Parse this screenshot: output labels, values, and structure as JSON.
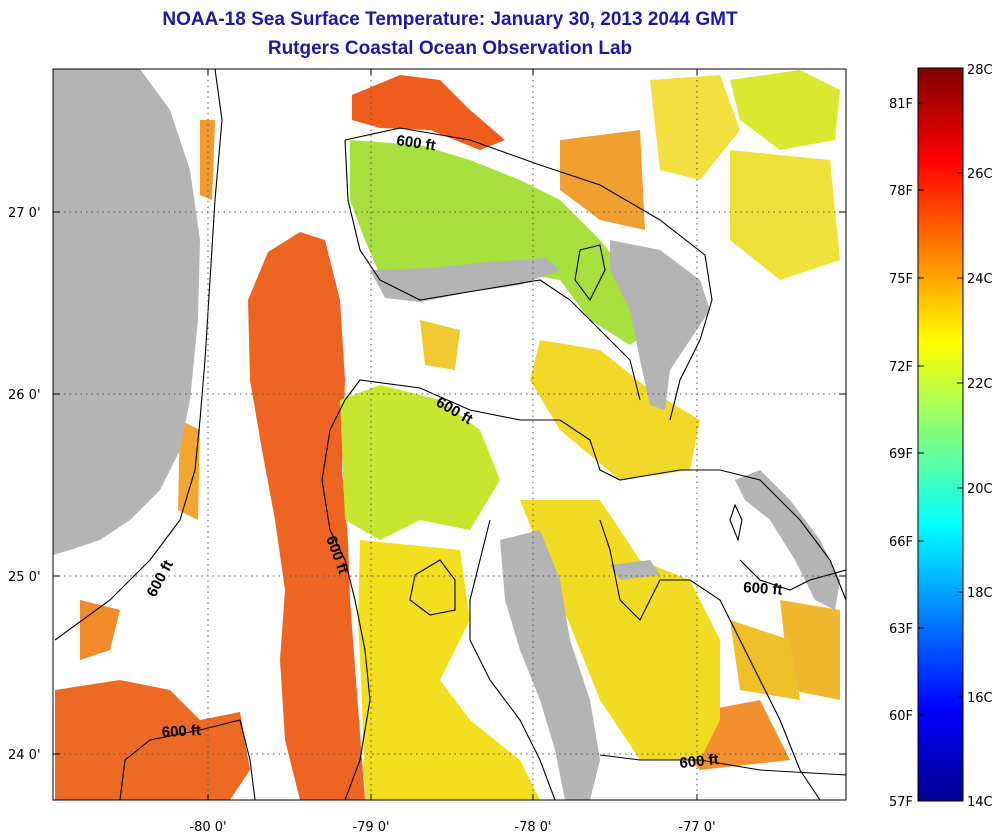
{
  "header": {
    "title": "NOAA-18 Sea Surface Temperature:  January 30, 2013 2044 GMT",
    "subtitle": "Rutgers Coastal Ocean Observation Lab"
  },
  "map": {
    "lat_ticks": [
      "27 0'",
      "26 0'",
      "25 0'",
      "24 0'"
    ],
    "lon_ticks": [
      "-80 0'",
      "-79 0'",
      "-78 0'",
      "-77 0'"
    ],
    "contour_labels": [
      "600 ft",
      "600 ft",
      "600 ft",
      "600 ft",
      "600 ft",
      "600 ft"
    ],
    "colors": {
      "land": "#b4b4b4",
      "cloud": "#ffffff",
      "grid": "#555555"
    }
  },
  "colorbar": {
    "fahrenheit": [
      "81F",
      "78F",
      "75F",
      "72F",
      "69F",
      "66F",
      "63F",
      "60F",
      "57F"
    ],
    "celsius": [
      "28C",
      "26C",
      "24C",
      "22C",
      "20C",
      "18C",
      "16C",
      "14C"
    ]
  }
}
